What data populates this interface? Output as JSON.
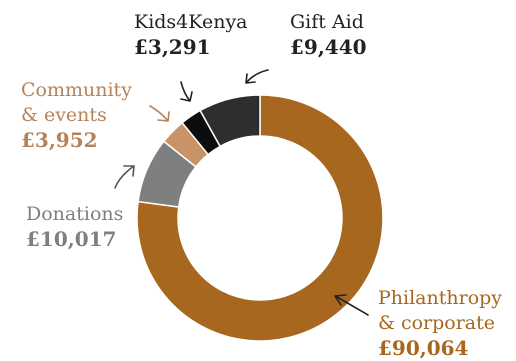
{
  "chart_data": {
    "type": "pie",
    "donut": true,
    "currency": "£",
    "categories": [
      "Philanthropy & corporate",
      "Donations",
      "Community & events",
      "Kids4Kenya",
      "Gift Aid"
    ],
    "values": [
      90064,
      10017,
      3952,
      3291,
      9440
    ],
    "slices": [
      {
        "name_lines": [
          "Philanthropy",
          "& corporate"
        ],
        "value": 90064,
        "value_label": "£90,064",
        "color": "#a8671e",
        "label_color": "#a8671e"
      },
      {
        "name_lines": [
          "Donations"
        ],
        "value": 10017,
        "value_label": "£10,017",
        "color": "#7f7f7f",
        "label_color": "#7f7f7f"
      },
      {
        "name_lines": [
          "Community",
          "& events"
        ],
        "value": 3952,
        "value_label": "£3,952",
        "color": "#c89467",
        "label_color": "#b4835a"
      },
      {
        "name_lines": [
          "Kids4Kenya"
        ],
        "value": 3291,
        "value_label": "£3,291",
        "color": "#0d0d0d",
        "label_color": "#222222"
      },
      {
        "name_lines": [
          "Gift Aid"
        ],
        "value": 9440,
        "value_label": "£9,440",
        "color": "#2e2e2e",
        "label_color": "#222222"
      }
    ],
    "legend": "none",
    "title": ""
  }
}
